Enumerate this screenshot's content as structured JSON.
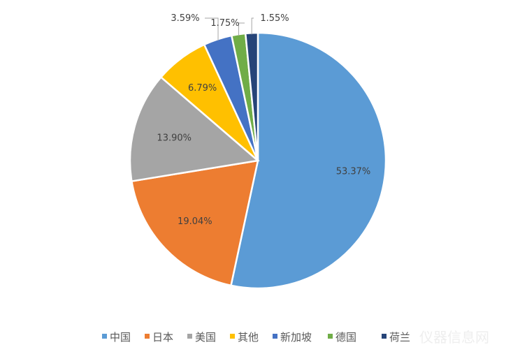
{
  "chart_data": {
    "type": "pie",
    "start_angle": "12 o'clock, clockwise",
    "categories": [
      "中国",
      "日本",
      "美国",
      "其他",
      "新加坡",
      "德国",
      "荷兰"
    ],
    "values": [
      53.37,
      19.04,
      13.9,
      6.79,
      3.59,
      1.75,
      1.55
    ],
    "labels": [
      "53.37%",
      "19.04%",
      "13.90%",
      "6.79%",
      "3.59%",
      "1.75%",
      "1.55%"
    ],
    "colors": [
      "#5B9BD5",
      "#ED7D31",
      "#A5A5A5",
      "#FFC000",
      "#4472C4",
      "#70AD47",
      "#264478"
    ],
    "legend_placement": "bottom"
  },
  "watermark": "仪器信息网"
}
